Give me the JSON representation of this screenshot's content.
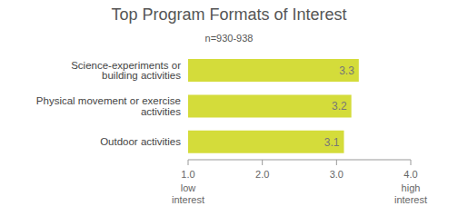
{
  "chart_data": {
    "type": "bar",
    "title": "Top Program Formats of Interest",
    "subtitle": "n=930-938",
    "orientation": "horizontal",
    "categories": [
      "Science-experiments or building activities",
      "Physical movement or exercise activities",
      "Outdoor activities"
    ],
    "values": [
      3.3,
      3.2,
      3.1
    ],
    "color": "#d4dc3a",
    "xlim": [
      1,
      4
    ],
    "xticks": [
      {
        "value": 1,
        "label": "1.0"
      },
      {
        "value": 2,
        "label": "2.0"
      },
      {
        "value": 3,
        "label": "3.0"
      },
      {
        "value": 4,
        "label": "4.0"
      }
    ],
    "grid": false,
    "data_labels": true,
    "annotations": [
      {
        "text": "low interest",
        "x": 1
      },
      {
        "text": "high interest",
        "x": 4
      }
    ]
  }
}
